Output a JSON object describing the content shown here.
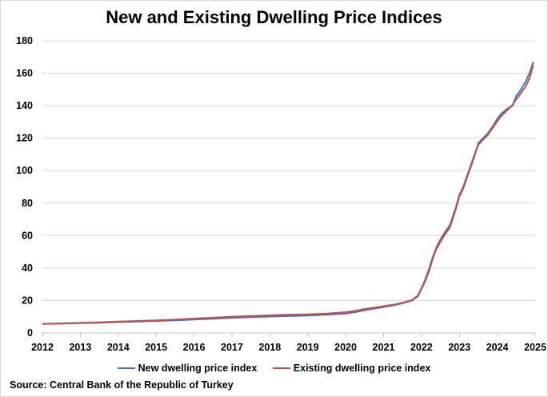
{
  "chart_data": {
    "type": "line",
    "title": "New and Existing Dwelling Price Indices",
    "xlabel": "",
    "ylabel": "",
    "xlim": [
      2012,
      2025
    ],
    "ylim": [
      0,
      180
    ],
    "yticks": [
      0,
      20,
      40,
      60,
      80,
      100,
      120,
      140,
      160,
      180
    ],
    "xticks": [
      2012,
      2013,
      2014,
      2015,
      2016,
      2017,
      2018,
      2019,
      2020,
      2021,
      2022,
      2023,
      2024,
      2025
    ],
    "grid": true,
    "legend_position": "bottom",
    "series": [
      {
        "name": "New dwelling price index",
        "color": "#4472c4",
        "x": [
          2012,
          2012.5,
          2013,
          2013.5,
          2014,
          2014.5,
          2015,
          2015.5,
          2016,
          2016.5,
          2017,
          2017.5,
          2018,
          2018.5,
          2019,
          2019.5,
          2020,
          2020.25,
          2020.5,
          2020.75,
          2021,
          2021.25,
          2021.5,
          2021.75,
          2021.9,
          2022,
          2022.1,
          2022.2,
          2022.3,
          2022.4,
          2022.5,
          2022.6,
          2022.75,
          2022.9,
          2023,
          2023.1,
          2023.25,
          2023.4,
          2023.5,
          2023.6,
          2023.75,
          2023.9,
          2024,
          2024.1,
          2024.25,
          2024.4,
          2024.5,
          2024.6,
          2024.75,
          2024.85,
          2024.95
        ],
        "values": [
          5.5,
          5.8,
          6.0,
          6.3,
          6.7,
          7.0,
          7.4,
          7.8,
          8.3,
          8.8,
          9.3,
          9.7,
          10.1,
          10.4,
          10.7,
          11.2,
          12.0,
          12.8,
          14.0,
          15.0,
          16.0,
          17.0,
          18.3,
          20.0,
          22.5,
          27.0,
          32.0,
          38.0,
          46.0,
          52.0,
          56.0,
          60.0,
          65.0,
          76.0,
          84.0,
          89.0,
          99.0,
          109.0,
          117.0,
          119.5,
          123.0,
          128.0,
          132.0,
          135.0,
          138.0,
          140.0,
          146.0,
          149.0,
          155.0,
          160.0,
          167.0
        ]
      },
      {
        "name": "Existing dwelling price index",
        "color": "#c0504d",
        "x": [
          2012,
          2012.5,
          2013,
          2013.5,
          2014,
          2014.5,
          2015,
          2015.5,
          2016,
          2016.5,
          2017,
          2017.5,
          2018,
          2018.5,
          2019,
          2019.5,
          2020,
          2020.25,
          2020.5,
          2020.75,
          2021,
          2021.25,
          2021.5,
          2021.75,
          2021.9,
          2022,
          2022.1,
          2022.2,
          2022.3,
          2022.4,
          2022.5,
          2022.6,
          2022.75,
          2022.9,
          2023,
          2023.1,
          2023.25,
          2023.4,
          2023.5,
          2023.6,
          2023.75,
          2023.9,
          2024,
          2024.1,
          2024.25,
          2024.4,
          2024.5,
          2024.6,
          2024.75,
          2024.85,
          2024.95
        ],
        "values": [
          5.6,
          5.9,
          6.2,
          6.6,
          7.0,
          7.4,
          7.8,
          8.3,
          8.9,
          9.4,
          10.0,
          10.5,
          10.9,
          11.3,
          11.5,
          12.0,
          12.8,
          13.6,
          14.8,
          15.6,
          16.5,
          17.4,
          18.6,
          20.3,
          23.0,
          27.5,
          33.0,
          39.5,
          47.0,
          53.0,
          57.5,
          61.5,
          66.5,
          77.0,
          85.0,
          90.0,
          100.0,
          110.0,
          116.0,
          118.5,
          122.0,
          127.0,
          130.5,
          133.5,
          137.0,
          140.5,
          144.0,
          147.0,
          152.0,
          157.0,
          165.0
        ]
      }
    ],
    "source": "Source: Central Bank of the Republic of Turkey"
  }
}
